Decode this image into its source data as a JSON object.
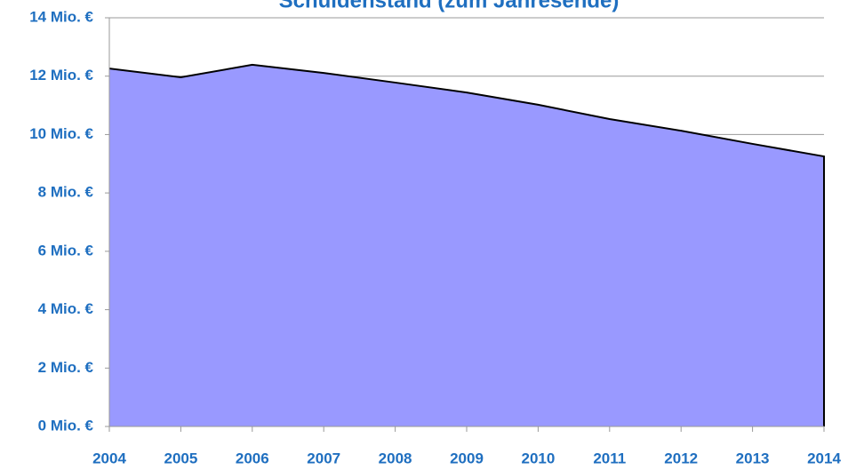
{
  "chart_data": {
    "type": "area",
    "title": "Schuldenstand (zum Jahresende)",
    "categories": [
      "2004",
      "2005",
      "2006",
      "2007",
      "2008",
      "2009",
      "2010",
      "2011",
      "2012",
      "2013",
      "2014"
    ],
    "values": [
      12.26,
      11.96,
      12.39,
      12.11,
      11.78,
      11.44,
      11.02,
      10.53,
      10.13,
      9.68,
      9.25
    ],
    "color": "#9999ff",
    "ylim": [
      0,
      14
    ],
    "yticks": [
      {
        "value": 0,
        "label": "0 Mio. €"
      },
      {
        "value": 2,
        "label": "2 Mio. €"
      },
      {
        "value": 4,
        "label": "4 Mio. €"
      },
      {
        "value": 6,
        "label": "6 Mio. €"
      },
      {
        "value": 8,
        "label": "8 Mio. €"
      },
      {
        "value": 10,
        "label": "10 Mio. €"
      },
      {
        "value": 12,
        "label": "12 Mio. €"
      },
      {
        "value": 14,
        "label": "14 Mio. €"
      }
    ],
    "grid": true
  }
}
